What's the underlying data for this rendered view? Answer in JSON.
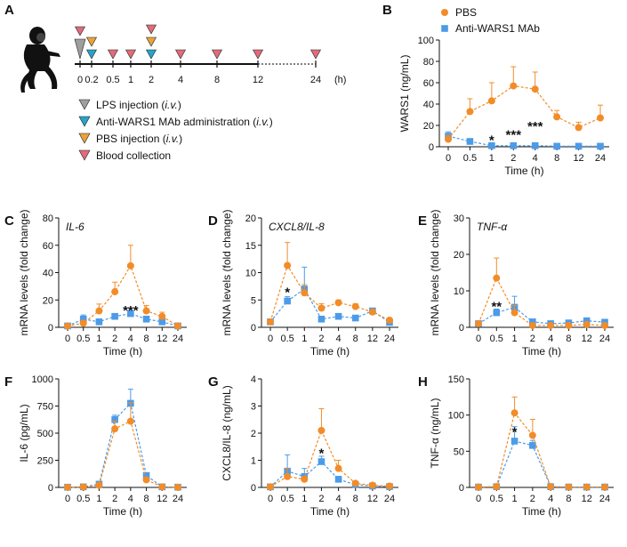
{
  "colors": {
    "pbs": "#F28C28",
    "anti": "#4C9BE8",
    "lps_tri": "#9E9E9E",
    "anti_tri": "#29A3C9",
    "pbs_tri": "#E8A33A",
    "blood_tri": "#E06C7A",
    "monkey": "#111111"
  },
  "scheme": {
    "panel_label": "A",
    "timepoints": [
      "0",
      "0.2",
      "0.5",
      "1",
      "2",
      "4",
      "8",
      "12",
      "24"
    ],
    "unit": "(h)",
    "legend": [
      {
        "key": "lps",
        "label": "LPS injection",
        "note": "i.v."
      },
      {
        "key": "anti",
        "label": "Anti-WARS1 MAb administration",
        "note": "i.v."
      },
      {
        "key": "pbs",
        "label": "PBS injection",
        "note": "i.v."
      },
      {
        "key": "blood",
        "label": "Blood collection",
        "note": ""
      }
    ]
  },
  "chart_data": [
    {
      "panel": "B",
      "type": "line",
      "ylabel": "WARS1 (ng/mL)",
      "xlabel": "Time (h)",
      "categories": [
        "0",
        "0.5",
        "1",
        "2",
        "4",
        "8",
        "12",
        "24"
      ],
      "ylim": [
        0,
        100
      ],
      "yticks": [
        "0",
        "20",
        "40",
        "60",
        "80",
        "100"
      ],
      "italic_title": "",
      "legend": [
        "PBS",
        "Anti-WARS1 MAb"
      ],
      "series": [
        {
          "name": "PBS",
          "values": [
            7,
            33,
            43,
            57,
            54,
            28,
            18,
            27
          ],
          "errors": [
            4,
            12,
            17,
            18,
            16,
            6,
            5,
            12
          ]
        },
        {
          "name": "Anti-WARS1 MAb",
          "values": [
            10,
            5,
            1,
            1,
            1,
            0.5,
            0.5,
            0.5
          ],
          "errors": [
            4,
            2,
            1,
            1,
            1,
            0.5,
            0.5,
            0.5
          ]
        }
      ],
      "annotations": [
        {
          "cat": 2,
          "text": "*",
          "y": 7
        },
        {
          "cat": 3,
          "text": "***",
          "y": 12
        },
        {
          "cat": 4,
          "text": "***",
          "y": 20
        }
      ]
    },
    {
      "panel": "C",
      "type": "line",
      "ylabel": "mRNA levels (fold change)",
      "xlabel": "Time (h)",
      "categories": [
        "0",
        "0.5",
        "1",
        "2",
        "4",
        "8",
        "12",
        "24"
      ],
      "ylim": [
        0,
        80
      ],
      "yticks": [
        "0",
        "20",
        "40",
        "60",
        "80"
      ],
      "italic_title": "IL-6",
      "legend": [],
      "series": [
        {
          "name": "PBS",
          "values": [
            1,
            3,
            12,
            26,
            45,
            12,
            8,
            1
          ],
          "errors": [
            0.5,
            2,
            5,
            7,
            15,
            4,
            3,
            0.5
          ]
        },
        {
          "name": "Anti-WARS1 MAb",
          "values": [
            1,
            6,
            4,
            8,
            10,
            6,
            4,
            1
          ],
          "errors": [
            0.5,
            3,
            2,
            2,
            4,
            2,
            2,
            0.5
          ]
        }
      ],
      "annotations": [
        {
          "cat": 4,
          "text": "***",
          "y": 13
        }
      ]
    },
    {
      "panel": "D",
      "type": "line",
      "ylabel": "mRNA levels (fold change)",
      "xlabel": "Time (h)",
      "categories": [
        "0",
        "0.5",
        "1",
        "2",
        "4",
        "8",
        "12",
        "24"
      ],
      "ylim": [
        0,
        20
      ],
      "yticks": [
        "0",
        "5",
        "10",
        "15",
        "20"
      ],
      "italic_title": "CXCL8/IL-8",
      "legend": [],
      "series": [
        {
          "name": "PBS",
          "values": [
            1,
            11.3,
            6.3,
            3.5,
            4.5,
            3.8,
            2.8,
            1.3
          ],
          "errors": [
            0.3,
            4.2,
            1.5,
            0.8,
            0.5,
            0.5,
            0.4,
            0.3
          ]
        },
        {
          "name": "Anti-WARS1 MAb",
          "values": [
            1,
            4.8,
            7,
            1.5,
            2,
            1.7,
            3,
            0.9
          ],
          "errors": [
            0.3,
            0.8,
            4,
            0.4,
            0.5,
            0.5,
            0.5,
            0.3
          ]
        }
      ],
      "annotations": [
        {
          "cat": 1,
          "text": "*",
          "y": 6.6
        }
      ]
    },
    {
      "panel": "E",
      "type": "line",
      "ylabel": "mRNA levels (fold change)",
      "xlabel": "Time (h)",
      "categories": [
        "0",
        "0.5",
        "1",
        "2",
        "4",
        "8",
        "12",
        "24"
      ],
      "ylim": [
        0,
        30
      ],
      "yticks": [
        "0",
        "10",
        "20",
        "30"
      ],
      "italic_title": "TNF-α",
      "legend": [],
      "series": [
        {
          "name": "PBS",
          "values": [
            1,
            13.5,
            4,
            0.5,
            0.5,
            0.5,
            0.8,
            0.5
          ],
          "errors": [
            0.3,
            5.5,
            2,
            0.3,
            0.3,
            0.3,
            0.3,
            0.3
          ]
        },
        {
          "name": "Anti-WARS1 MAb",
          "values": [
            1,
            4,
            5.5,
            1.5,
            1,
            1.2,
            1.8,
            1.4
          ],
          "errors": [
            0.3,
            1,
            3,
            0.6,
            0.5,
            0.5,
            0.6,
            0.5
          ]
        }
      ],
      "annotations": [
        {
          "cat": 1,
          "text": "**",
          "y": 6
        }
      ]
    },
    {
      "panel": "F",
      "type": "line",
      "ylabel": "IL-6 (pg/mL)",
      "xlabel": "Time (h)",
      "categories": [
        "0",
        "0.5",
        "1",
        "2",
        "4",
        "8",
        "12",
        "24"
      ],
      "ylim": [
        0,
        1000
      ],
      "yticks": [
        "0",
        "250",
        "500",
        "750",
        "1000"
      ],
      "italic_title": "",
      "legend": [],
      "series": [
        {
          "name": "PBS",
          "values": [
            2,
            5,
            20,
            540,
            610,
            70,
            5,
            2
          ],
          "errors": [
            2,
            5,
            10,
            70,
            170,
            20,
            5,
            2
          ]
        },
        {
          "name": "Anti-WARS1 MAb",
          "values": [
            2,
            5,
            30,
            625,
            775,
            110,
            5,
            2
          ],
          "errors": [
            2,
            5,
            15,
            40,
            130,
            25,
            5,
            2
          ]
        }
      ],
      "annotations": []
    },
    {
      "panel": "G",
      "type": "line",
      "ylabel": "CXCL8/IL-8 (ng/mL)",
      "xlabel": "Time (h)",
      "categories": [
        "0",
        "0.5",
        "1",
        "2",
        "4",
        "8",
        "12",
        "24"
      ],
      "ylim": [
        0,
        4
      ],
      "yticks": [
        "0",
        "1",
        "2",
        "3",
        "4"
      ],
      "italic_title": "",
      "legend": [],
      "series": [
        {
          "name": "PBS",
          "values": [
            0.02,
            0.4,
            0.3,
            2.1,
            0.7,
            0.15,
            0.08,
            0.05
          ],
          "errors": [
            0.02,
            0.3,
            0.1,
            0.8,
            0.3,
            0.05,
            0.03,
            0.02
          ]
        },
        {
          "name": "Anti-WARS1 MAb",
          "values": [
            0.02,
            0.6,
            0.4,
            0.95,
            0.3,
            0.1,
            0.05,
            0.03
          ],
          "errors": [
            0.02,
            0.6,
            0.3,
            0.2,
            0.1,
            0.05,
            0.03,
            0.02
          ]
        }
      ],
      "annotations": [
        {
          "cat": 3,
          "text": "*",
          "y": 1.3
        }
      ]
    },
    {
      "panel": "H",
      "type": "line",
      "ylabel": "TNF-α (ng/mL)",
      "xlabel": "Time (h)",
      "categories": [
        "0",
        "0.5",
        "1",
        "2",
        "4",
        "8",
        "12",
        "24"
      ],
      "ylim": [
        0,
        150
      ],
      "yticks": [
        "0",
        "50",
        "100",
        "150"
      ],
      "italic_title": "",
      "legend": [],
      "series": [
        {
          "name": "PBS",
          "values": [
            0.5,
            1,
            103,
            72,
            1,
            0.5,
            0.5,
            0.5
          ],
          "errors": [
            0.5,
            1,
            22,
            22,
            1,
            0.5,
            0.5,
            0.5
          ]
        },
        {
          "name": "Anti-WARS1 MAb",
          "values": [
            0.5,
            1,
            64,
            58,
            1,
            0.5,
            0.5,
            0.5
          ],
          "errors": [
            0.5,
            1,
            20,
            7,
            1,
            0.5,
            0.5,
            0.5
          ]
        }
      ],
      "annotations": [
        {
          "cat": 2,
          "text": "*",
          "y": 78
        }
      ]
    }
  ]
}
